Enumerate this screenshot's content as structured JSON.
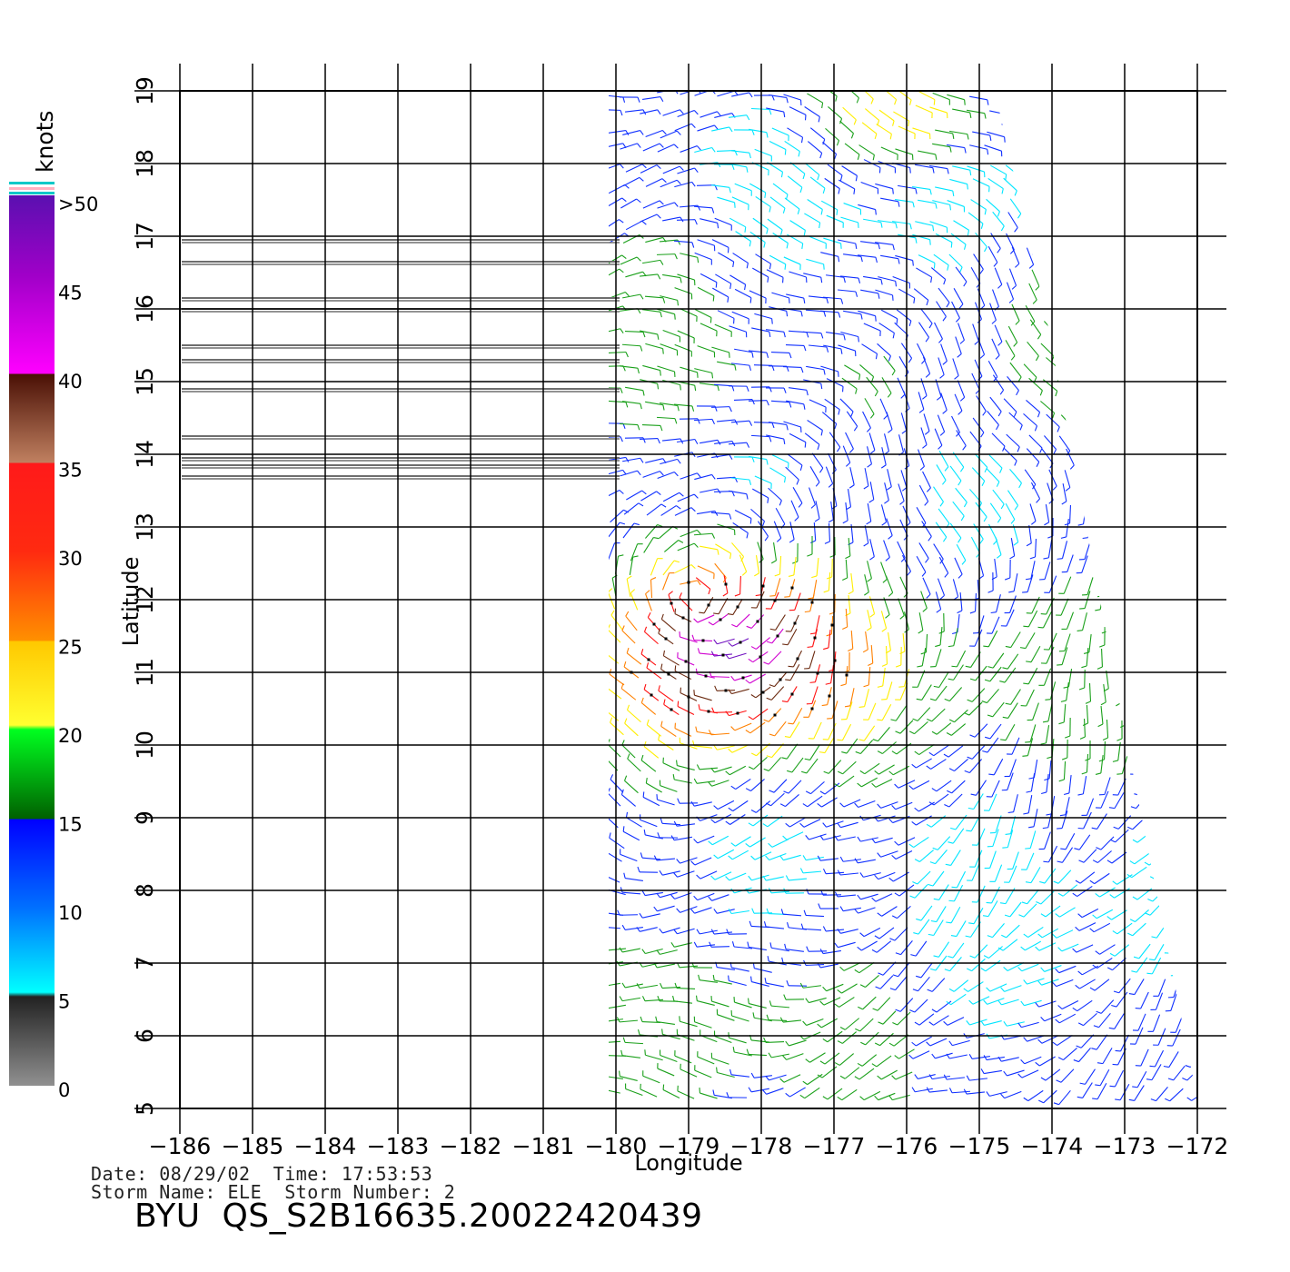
{
  "map": {
    "xlabel": "Longitude",
    "ylabel": "Latitude",
    "lon_range": [
      -186,
      -172
    ],
    "lat_range": [
      5,
      19
    ],
    "lon_ticks": [
      "−186",
      "−185",
      "−184",
      "−183",
      "−182",
      "−181",
      "−180",
      "−179",
      "−178",
      "−177",
      "−176",
      "−175",
      "−174",
      "−173",
      "−172"
    ],
    "lat_ticks": [
      "5",
      "6",
      "7",
      "8",
      "9",
      "10",
      "11",
      "12",
      "13",
      "14",
      "15",
      "16",
      "17",
      "18",
      "19"
    ],
    "grid": true,
    "no_data_swath_lines_lat": [
      16.95,
      16.65,
      16.15,
      16.0,
      15.5,
      15.3,
      14.9,
      14.25,
      13.95,
      13.85,
      13.7
    ]
  },
  "colorbar": {
    "unit": "knots",
    "labels": [
      ">50",
      "45",
      "40",
      "35",
      "30",
      "25",
      "20",
      "15",
      "10",
      "5",
      "0"
    ]
  },
  "footer": {
    "date_line": "Date: 08/29/02  Time: 17:53:53",
    "storm_line": "Storm Name: ELE  Storm Number: 2",
    "product_id": "BYU  QS_S2B16635.20022420439"
  },
  "colors": {
    "grid": "#000000",
    "swath_line": "#6e6e6e",
    "speed_0_5": "#555555",
    "speed_5_10": "#00e5ff",
    "speed_10_15": "#1030ff",
    "speed_15_20": "#1aa01a",
    "speed_20_25": "#ffee00",
    "speed_25_30": "#ff8000",
    "speed_30_35": "#ff1010",
    "speed_35_40": "#6b2a10",
    "speed_40_45": "#d000d0",
    "speed_45_50": "#7010c0"
  }
}
